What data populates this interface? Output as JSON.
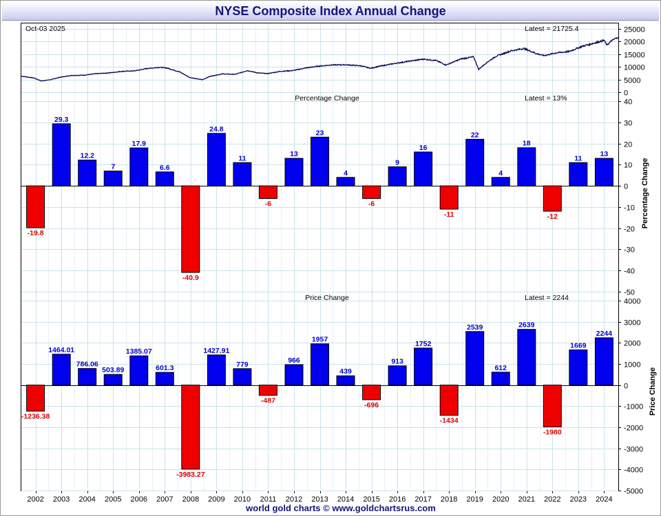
{
  "page": {
    "title": "NYSE Composite Index Annual Change",
    "footer": "world gold charts © www.goldchartsrus.com"
  },
  "colors": {
    "positive": "#0000ee",
    "negative": "#ee0000",
    "positive_label": "#0000cc",
    "negative_label": "#dd0000",
    "price_line": "#0a0a55",
    "grid": "#c8e2ea",
    "title_text": "#14147a"
  },
  "chart_data": [
    {
      "type": "line",
      "panel": "price",
      "date_label": "Oct-03  2025",
      "latest_label": "Latest = 21725.4",
      "x_range": [
        2002,
        2025.76
      ],
      "ylim": [
        0,
        26000
      ],
      "yticks": [
        0,
        5000,
        10000,
        15000,
        20000,
        25000
      ],
      "grid": true,
      "x": [
        2002.0,
        2002.5,
        2002.8,
        2003.2,
        2003.5,
        2004.0,
        2004.5,
        2005.0,
        2005.5,
        2006.0,
        2006.5,
        2007.0,
        2007.5,
        2007.8,
        2008.3,
        2008.7,
        2009.2,
        2009.5,
        2010.0,
        2010.5,
        2011.0,
        2011.4,
        2011.8,
        2012.3,
        2012.8,
        2013.3,
        2013.8,
        2014.3,
        2014.9,
        2015.5,
        2015.9,
        2016.2,
        2016.8,
        2017.5,
        2018.0,
        2018.5,
        2018.9,
        2019.5,
        2020.0,
        2020.2,
        2020.5,
        2020.9,
        2021.5,
        2022.0,
        2022.5,
        2022.8,
        2023.3,
        2023.8,
        2024.3,
        2024.9,
        2025.2,
        2025.3,
        2025.5,
        2025.76
      ],
      "y": [
        6300,
        5600,
        4400,
        5000,
        5800,
        6600,
        6700,
        7300,
        7600,
        8200,
        8400,
        9300,
        9800,
        9500,
        8000,
        5800,
        4900,
        6200,
        7200,
        7000,
        8500,
        7600,
        7300,
        8200,
        8500,
        9500,
        10200,
        10700,
        10800,
        10400,
        9400,
        10100,
        11200,
        12300,
        13000,
        12500,
        10700,
        13100,
        13900,
        9000,
        11500,
        14200,
        16300,
        17200,
        15200,
        14400,
        15500,
        16000,
        18000,
        19600,
        20400,
        18500,
        20300,
        21725
      ]
    },
    {
      "type": "bar",
      "panel": "percentage",
      "title": "Percentage Change",
      "ylabel": "Percentage Change",
      "latest_label": "Latest = 13%",
      "ylim": [
        -50,
        40
      ],
      "yticks": [
        -50,
        -40,
        -30,
        -20,
        -10,
        0,
        10,
        20,
        30,
        40
      ],
      "grid": true,
      "categories": [
        "2002",
        "2003",
        "2004",
        "2005",
        "2006",
        "2007",
        "2008",
        "2009",
        "2010",
        "2011",
        "2012",
        "2013",
        "2014",
        "2015",
        "2016",
        "2017",
        "2018",
        "2019",
        "2020",
        "2021",
        "2022",
        "2023",
        "2024"
      ],
      "values": [
        -19.8,
        29.3,
        12.2,
        7,
        17.9,
        6.6,
        -40.9,
        24.8,
        11,
        -6,
        13,
        23,
        4,
        -6,
        9,
        16,
        -11,
        22,
        4,
        18,
        -12,
        11,
        13
      ],
      "labels": [
        "-19.8",
        "29.3",
        "12.2",
        "7",
        "17.9",
        "6.6",
        "-40.9",
        "24.8",
        "11",
        "-6",
        "13",
        "23",
        "4",
        "-6",
        "9",
        "16",
        "-11",
        "22",
        "4",
        "18",
        "-12",
        "11",
        "13"
      ]
    },
    {
      "type": "bar",
      "panel": "price-change",
      "title": "Price Change",
      "ylabel": "Price Change",
      "latest_label": "Latest = 2244",
      "ylim": [
        -5000,
        4000
      ],
      "yticks": [
        -5000,
        -4000,
        -3000,
        -2000,
        -1000,
        0,
        1000,
        2000,
        3000,
        4000
      ],
      "grid": true,
      "categories": [
        "2002",
        "2003",
        "2004",
        "2005",
        "2006",
        "2007",
        "2008",
        "2009",
        "2010",
        "2011",
        "2012",
        "2013",
        "2014",
        "2015",
        "2016",
        "2017",
        "2018",
        "2019",
        "2020",
        "2021",
        "2022",
        "2023",
        "2024"
      ],
      "values": [
        -1236.38,
        1464.01,
        786.06,
        503.89,
        1385.07,
        601.3,
        -3983.27,
        1427.91,
        779,
        -487,
        966,
        1957,
        439,
        -696,
        913,
        1752,
        -1434,
        2539,
        612,
        2639,
        -1980,
        1669,
        2244
      ],
      "labels": [
        "-1236.38",
        "1464.01",
        "786.06",
        "503.89",
        "1385.07",
        "601.3",
        "-3983.27",
        "1427.91",
        "779",
        "-487",
        "966",
        "1957",
        "439",
        "-696",
        "913",
        "1752",
        "-1434",
        "2539",
        "612",
        "2639",
        "-1980",
        "1669",
        "2244"
      ]
    }
  ]
}
